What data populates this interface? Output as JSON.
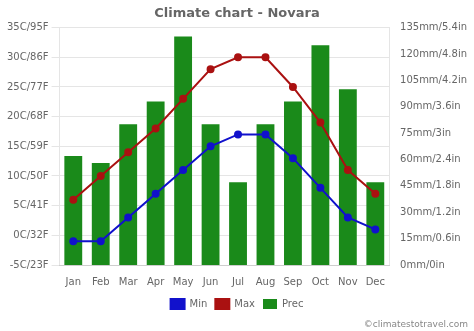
{
  "chart_data": {
    "type": "bar",
    "title": "Climate chart - Novara",
    "categories": [
      "Jan",
      "Feb",
      "Mar",
      "Apr",
      "May",
      "Jun",
      "Jul",
      "Aug",
      "Sep",
      "Oct",
      "Nov",
      "Dec"
    ],
    "series": [
      {
        "name": "Prec",
        "type": "bar",
        "axis": "y2",
        "color": "#1a8a1a",
        "values": [
          62,
          58,
          80,
          93,
          130,
          80,
          47,
          80,
          93,
          125,
          100,
          47
        ]
      },
      {
        "name": "Min",
        "type": "line",
        "color": "#1111cc",
        "marker": "circle",
        "line_style": "solid",
        "values": [
          -1,
          -1,
          3,
          7,
          11,
          15,
          17,
          17,
          13,
          8,
          3,
          1
        ]
      },
      {
        "name": "Max",
        "type": "line",
        "color": "#aa1111",
        "marker": "circle",
        "line_style": "solid",
        "values": [
          6,
          10,
          14,
          18,
          23,
          28,
          30,
          30,
          25,
          19,
          11,
          7
        ]
      }
    ],
    "ylim": [
      -5,
      35
    ],
    "yticks": [
      {
        "value": -5,
        "label": "-5C/23F"
      },
      {
        "value": 0,
        "label": "0C/32F"
      },
      {
        "value": 5,
        "label": "5C/41F"
      },
      {
        "value": 10,
        "label": "10C/50F"
      },
      {
        "value": 15,
        "label": "15C/59F"
      },
      {
        "value": 20,
        "label": "20C/68F"
      },
      {
        "value": 25,
        "label": "25C/77F"
      },
      {
        "value": 30,
        "label": "30C/86F"
      },
      {
        "value": 35,
        "label": "35C/95F"
      }
    ],
    "y2lim": [
      0,
      135
    ],
    "y2ticks": [
      {
        "value": 0,
        "label": "0mm/0in"
      },
      {
        "value": 15,
        "label": "15mm/0.6in"
      },
      {
        "value": 30,
        "label": "30mm/1.2in"
      },
      {
        "value": 45,
        "label": "45mm/1.8in"
      },
      {
        "value": 60,
        "label": "60mm/2.4in"
      },
      {
        "value": 75,
        "label": "75mm/3in"
      },
      {
        "value": 90,
        "label": "90mm/3.6in"
      },
      {
        "value": 105,
        "label": "105mm/4.2in"
      },
      {
        "value": 120,
        "label": "120mm/4.8in"
      },
      {
        "value": 135,
        "label": "135mm/5.4in"
      }
    ],
    "grid": true,
    "legend": "bottom",
    "annotations": [
      "©climatestotravel.com"
    ]
  }
}
